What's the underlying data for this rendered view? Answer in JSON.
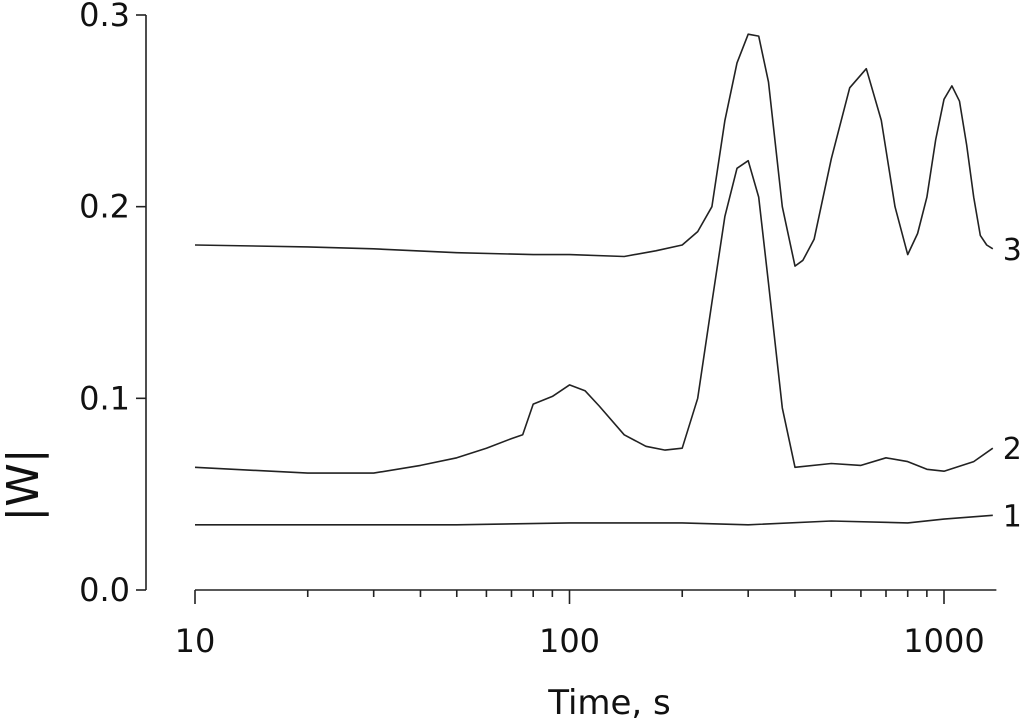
{
  "chart_data": {
    "type": "line",
    "xlabel": "Time, s",
    "ylabel": "|W|",
    "x_scale": "log",
    "xlim": [
      10,
      1380
    ],
    "ylim": [
      0,
      0.3
    ],
    "x_ticks": [
      10,
      100,
      1000
    ],
    "x_tick_labels": [
      "10",
      "100",
      "1000"
    ],
    "y_ticks": [
      0.0,
      0.1,
      0.2,
      0.3
    ],
    "y_tick_labels": [
      "0.0",
      "0.1",
      "0.2",
      "0.3"
    ],
    "grid": false,
    "legend": "none",
    "series": [
      {
        "name": "1",
        "x": [
          10,
          20,
          50,
          100,
          200,
          300,
          500,
          800,
          1000,
          1350
        ],
        "values": [
          0.034,
          0.034,
          0.034,
          0.035,
          0.035,
          0.034,
          0.036,
          0.035,
          0.037,
          0.039
        ]
      },
      {
        "name": "2",
        "x": [
          10,
          20,
          30,
          40,
          50,
          60,
          70,
          75,
          80,
          90,
          100,
          110,
          120,
          140,
          160,
          180,
          200,
          220,
          240,
          260,
          280,
          300,
          320,
          340,
          370,
          400,
          500,
          600,
          700,
          800,
          900,
          1000,
          1200,
          1350
        ],
        "values": [
          0.064,
          0.061,
          0.061,
          0.065,
          0.069,
          0.074,
          0.079,
          0.081,
          0.097,
          0.101,
          0.107,
          0.104,
          0.096,
          0.081,
          0.075,
          0.073,
          0.074,
          0.1,
          0.15,
          0.195,
          0.22,
          0.224,
          0.205,
          0.16,
          0.095,
          0.064,
          0.066,
          0.065,
          0.069,
          0.067,
          0.063,
          0.062,
          0.067,
          0.074
        ]
      },
      {
        "name": "3",
        "x": [
          10,
          20,
          30,
          50,
          80,
          100,
          140,
          170,
          200,
          220,
          240,
          260,
          280,
          300,
          320,
          340,
          370,
          400,
          420,
          450,
          500,
          560,
          620,
          680,
          740,
          800,
          850,
          900,
          950,
          1000,
          1050,
          1100,
          1150,
          1200,
          1250,
          1300,
          1350
        ],
        "values": [
          0.18,
          0.179,
          0.178,
          0.176,
          0.175,
          0.175,
          0.174,
          0.177,
          0.18,
          0.187,
          0.2,
          0.245,
          0.275,
          0.29,
          0.289,
          0.265,
          0.2,
          0.169,
          0.172,
          0.183,
          0.225,
          0.262,
          0.272,
          0.245,
          0.2,
          0.175,
          0.186,
          0.205,
          0.235,
          0.256,
          0.263,
          0.255,
          0.232,
          0.205,
          0.185,
          0.18,
          0.178
        ]
      }
    ]
  }
}
